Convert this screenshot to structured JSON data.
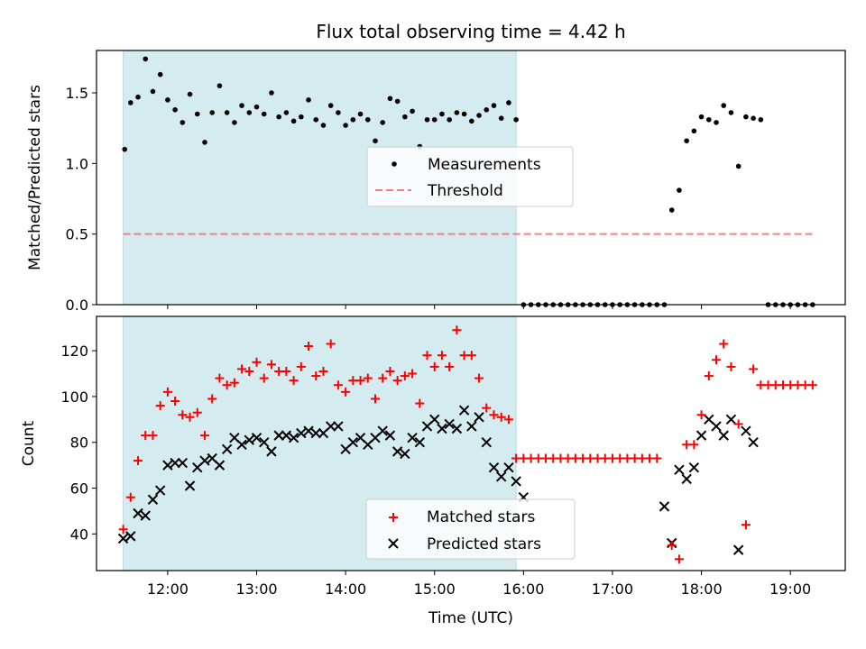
{
  "chart_data": [
    {
      "type": "scatter",
      "title": "Flux total observing time = 4.42 h",
      "xlabel": "",
      "ylabel": "Matched/Predicted stars",
      "xlim": [
        "11:12",
        "19:37"
      ],
      "ylim": [
        0,
        1.8
      ],
      "yticks": [
        "0.0",
        "0.5",
        "1.0",
        "1.5"
      ],
      "shaded_interval": [
        "11:30",
        "15:55"
      ],
      "legend": {
        "placement": "center",
        "entries": [
          "Measurements",
          "Threshold"
        ]
      },
      "threshold": {
        "name": "Threshold",
        "y": 0.5,
        "x": [
          "11:30",
          "19:15"
        ]
      },
      "series": [
        {
          "name": "Measurements",
          "points": [
            [
              "11:31",
              1.1
            ],
            [
              "11:35",
              1.43
            ],
            [
              "11:40",
              1.47
            ],
            [
              "11:45",
              1.74
            ],
            [
              "11:50",
              1.51
            ],
            [
              "11:55",
              1.63
            ],
            [
              "12:00",
              1.45
            ],
            [
              "12:05",
              1.38
            ],
            [
              "12:10",
              1.29
            ],
            [
              "12:15",
              1.49
            ],
            [
              "12:20",
              1.35
            ],
            [
              "12:25",
              1.15
            ],
            [
              "12:30",
              1.36
            ],
            [
              "12:35",
              1.55
            ],
            [
              "12:40",
              1.36
            ],
            [
              "12:45",
              1.29
            ],
            [
              "12:50",
              1.41
            ],
            [
              "12:55",
              1.36
            ],
            [
              "13:00",
              1.4
            ],
            [
              "13:05",
              1.35
            ],
            [
              "13:10",
              1.5
            ],
            [
              "13:15",
              1.33
            ],
            [
              "13:20",
              1.36
            ],
            [
              "13:25",
              1.3
            ],
            [
              "13:30",
              1.33
            ],
            [
              "13:35",
              1.45
            ],
            [
              "13:40",
              1.31
            ],
            [
              "13:45",
              1.27
            ],
            [
              "13:50",
              1.41
            ],
            [
              "13:55",
              1.36
            ],
            [
              "14:00",
              1.27
            ],
            [
              "14:05",
              1.31
            ],
            [
              "14:10",
              1.35
            ],
            [
              "14:15",
              1.31
            ],
            [
              "14:20",
              1.16
            ],
            [
              "14:25",
              1.29
            ],
            [
              "14:30",
              1.46
            ],
            [
              "14:35",
              1.44
            ],
            [
              "14:40",
              1.33
            ],
            [
              "14:45",
              1.37
            ],
            [
              "14:50",
              1.12
            ],
            [
              "14:55",
              1.31
            ],
            [
              "15:00",
              1.31
            ],
            [
              "15:05",
              1.35
            ],
            [
              "15:10",
              1.31
            ],
            [
              "15:15",
              1.36
            ],
            [
              "15:20",
              1.35
            ],
            [
              "15:25",
              1.3
            ],
            [
              "15:30",
              1.34
            ],
            [
              "15:35",
              1.38
            ],
            [
              "15:40",
              1.41
            ],
            [
              "15:45",
              1.32
            ],
            [
              "15:50",
              1.43
            ],
            [
              "15:55",
              1.31
            ],
            [
              "16:00",
              0
            ],
            [
              "16:05",
              0
            ],
            [
              "16:10",
              0
            ],
            [
              "16:15",
              0
            ],
            [
              "16:20",
              0
            ],
            [
              "16:25",
              0
            ],
            [
              "16:30",
              0
            ],
            [
              "16:35",
              0
            ],
            [
              "16:40",
              0
            ],
            [
              "16:45",
              0
            ],
            [
              "16:50",
              0
            ],
            [
              "16:55",
              0
            ],
            [
              "17:00",
              0
            ],
            [
              "17:05",
              0
            ],
            [
              "17:10",
              0
            ],
            [
              "17:15",
              0
            ],
            [
              "17:20",
              0
            ],
            [
              "17:25",
              0
            ],
            [
              "17:30",
              0
            ],
            [
              "17:35",
              0
            ],
            [
              "17:40",
              0.67
            ],
            [
              "17:45",
              0.81
            ],
            [
              "17:50",
              1.16
            ],
            [
              "17:55",
              1.23
            ],
            [
              "18:00",
              1.33
            ],
            [
              "18:05",
              1.31
            ],
            [
              "18:10",
              1.29
            ],
            [
              "18:15",
              1.41
            ],
            [
              "18:20",
              1.36
            ],
            [
              "18:25",
              0.98
            ],
            [
              "18:30",
              1.33
            ],
            [
              "18:35",
              1.32
            ],
            [
              "18:40",
              1.31
            ],
            [
              "18:45",
              0
            ],
            [
              "18:50",
              0
            ],
            [
              "18:55",
              0
            ],
            [
              "19:00",
              0
            ],
            [
              "19:05",
              0
            ],
            [
              "19:10",
              0
            ],
            [
              "19:15",
              0
            ]
          ]
        }
      ]
    },
    {
      "type": "scatter",
      "title": "",
      "xlabel": "Time (UTC)",
      "ylabel": "Count",
      "xlim": [
        "11:12",
        "19:37"
      ],
      "ylim": [
        24,
        135
      ],
      "yticks": [
        "40",
        "60",
        "80",
        "100",
        "120"
      ],
      "xticks": [
        "12:00",
        "13:00",
        "14:00",
        "15:00",
        "16:00",
        "17:00",
        "18:00",
        "19:00"
      ],
      "shaded_interval": [
        "11:30",
        "15:55"
      ],
      "legend": {
        "placement": "lower center",
        "entries": [
          "Matched stars",
          "Predicted stars"
        ]
      },
      "series": [
        {
          "name": "Matched stars",
          "marker": "+",
          "color": "#ff0000",
          "points": [
            [
              "11:30",
              42
            ],
            [
              "11:35",
              56
            ],
            [
              "11:40",
              72
            ],
            [
              "11:45",
              83
            ],
            [
              "11:50",
              83
            ],
            [
              "11:55",
              96
            ],
            [
              "12:00",
              102
            ],
            [
              "12:05",
              98
            ],
            [
              "12:10",
              92
            ],
            [
              "12:15",
              91
            ],
            [
              "12:20",
              93
            ],
            [
              "12:25",
              83
            ],
            [
              "12:30",
              99
            ],
            [
              "12:35",
              108
            ],
            [
              "12:40",
              105
            ],
            [
              "12:45",
              106
            ],
            [
              "12:50",
              112
            ],
            [
              "12:55",
              111
            ],
            [
              "13:00",
              115
            ],
            [
              "13:05",
              108
            ],
            [
              "13:10",
              114
            ],
            [
              "13:15",
              111
            ],
            [
              "13:20",
              111
            ],
            [
              "13:25",
              107
            ],
            [
              "13:30",
              113
            ],
            [
              "13:35",
              122
            ],
            [
              "13:40",
              109
            ],
            [
              "13:45",
              111
            ],
            [
              "13:50",
              123
            ],
            [
              "13:55",
              105
            ],
            [
              "14:00",
              102
            ],
            [
              "14:05",
              107
            ],
            [
              "14:10",
              107
            ],
            [
              "14:15",
              108
            ],
            [
              "14:20",
              99
            ],
            [
              "14:25",
              108
            ],
            [
              "14:30",
              111
            ],
            [
              "14:35",
              107
            ],
            [
              "14:40",
              109
            ],
            [
              "14:45",
              110
            ],
            [
              "14:50",
              97
            ],
            [
              "14:55",
              118
            ],
            [
              "15:00",
              113
            ],
            [
              "15:05",
              118
            ],
            [
              "15:10",
              113
            ],
            [
              "15:15",
              129
            ],
            [
              "15:20",
              118
            ],
            [
              "15:25",
              118
            ],
            [
              "15:30",
              108
            ],
            [
              "15:35",
              95
            ],
            [
              "15:40",
              92
            ],
            [
              "15:45",
              91
            ],
            [
              "15:50",
              90
            ],
            [
              "15:55",
              73
            ],
            [
              "16:00",
              73
            ],
            [
              "16:05",
              73
            ],
            [
              "16:10",
              73
            ],
            [
              "16:15",
              73
            ],
            [
              "16:20",
              73
            ],
            [
              "16:25",
              73
            ],
            [
              "16:30",
              73
            ],
            [
              "16:35",
              73
            ],
            [
              "16:40",
              73
            ],
            [
              "16:45",
              73
            ],
            [
              "16:50",
              73
            ],
            [
              "16:55",
              73
            ],
            [
              "17:00",
              73
            ],
            [
              "17:05",
              73
            ],
            [
              "17:10",
              73
            ],
            [
              "17:15",
              73
            ],
            [
              "17:20",
              73
            ],
            [
              "17:25",
              73
            ],
            [
              "17:30",
              73
            ],
            [
              "17:40",
              35
            ],
            [
              "17:45",
              29
            ],
            [
              "17:50",
              79
            ],
            [
              "17:55",
              79
            ],
            [
              "18:00",
              92
            ],
            [
              "18:05",
              109
            ],
            [
              "18:10",
              116
            ],
            [
              "18:15",
              123
            ],
            [
              "18:20",
              113
            ],
            [
              "18:25",
              88
            ],
            [
              "18:30",
              44
            ],
            [
              "18:35",
              112
            ],
            [
              "18:40",
              105
            ],
            [
              "18:45",
              105
            ],
            [
              "18:50",
              105
            ],
            [
              "18:55",
              105
            ],
            [
              "19:00",
              105
            ],
            [
              "19:05",
              105
            ],
            [
              "19:10",
              105
            ],
            [
              "19:15",
              105
            ]
          ]
        },
        {
          "name": "Predicted stars",
          "marker": "x",
          "color": "#000000",
          "points": [
            [
              "11:30",
              38
            ],
            [
              "11:35",
              39
            ],
            [
              "11:40",
              49
            ],
            [
              "11:45",
              48
            ],
            [
              "11:50",
              55
            ],
            [
              "11:55",
              59
            ],
            [
              "12:00",
              70
            ],
            [
              "12:05",
              71
            ],
            [
              "12:10",
              71
            ],
            [
              "12:15",
              61
            ],
            [
              "12:20",
              69
            ],
            [
              "12:25",
              72
            ],
            [
              "12:30",
              73
            ],
            [
              "12:35",
              70
            ],
            [
              "12:40",
              77
            ],
            [
              "12:45",
              82
            ],
            [
              "12:50",
              79
            ],
            [
              "12:55",
              81
            ],
            [
              "13:00",
              82
            ],
            [
              "13:05",
              80
            ],
            [
              "13:10",
              76
            ],
            [
              "13:15",
              83
            ],
            [
              "13:20",
              83
            ],
            [
              "13:25",
              82
            ],
            [
              "13:30",
              84
            ],
            [
              "13:35",
              85
            ],
            [
              "13:40",
              84
            ],
            [
              "13:45",
              84
            ],
            [
              "13:50",
              87
            ],
            [
              "13:55",
              87
            ],
            [
              "14:00",
              77
            ],
            [
              "14:05",
              80
            ],
            [
              "14:10",
              82
            ],
            [
              "14:15",
              79
            ],
            [
              "14:20",
              82
            ],
            [
              "14:25",
              85
            ],
            [
              "14:30",
              83
            ],
            [
              "14:35",
              76
            ],
            [
              "14:40",
              75
            ],
            [
              "14:45",
              82
            ],
            [
              "14:50",
              80
            ],
            [
              "14:55",
              87
            ],
            [
              "15:00",
              90
            ],
            [
              "15:05",
              86
            ],
            [
              "15:10",
              88
            ],
            [
              "15:15",
              86
            ],
            [
              "15:20",
              94
            ],
            [
              "15:25",
              87
            ],
            [
              "15:30",
              91
            ],
            [
              "15:35",
              80
            ],
            [
              "15:40",
              69
            ],
            [
              "15:45",
              65
            ],
            [
              "15:50",
              69
            ],
            [
              "15:55",
              63
            ],
            [
              "16:00",
              56
            ],
            [
              "17:35",
              52
            ],
            [
              "17:40",
              36
            ],
            [
              "17:45",
              68
            ],
            [
              "17:50",
              64
            ],
            [
              "17:55",
              69
            ],
            [
              "18:00",
              83
            ],
            [
              "18:05",
              90
            ],
            [
              "18:10",
              87
            ],
            [
              "18:15",
              83
            ],
            [
              "18:20",
              90
            ],
            [
              "18:25",
              33
            ],
            [
              "18:30",
              85
            ],
            [
              "18:35",
              80
            ]
          ]
        }
      ]
    }
  ],
  "colors": {
    "shade": "#d4ebf0",
    "shade_edge": "#b9dbe3",
    "threshold": "#f08080",
    "measurement": "#000000",
    "matched": "#ff0000",
    "predicted": "#000000"
  }
}
